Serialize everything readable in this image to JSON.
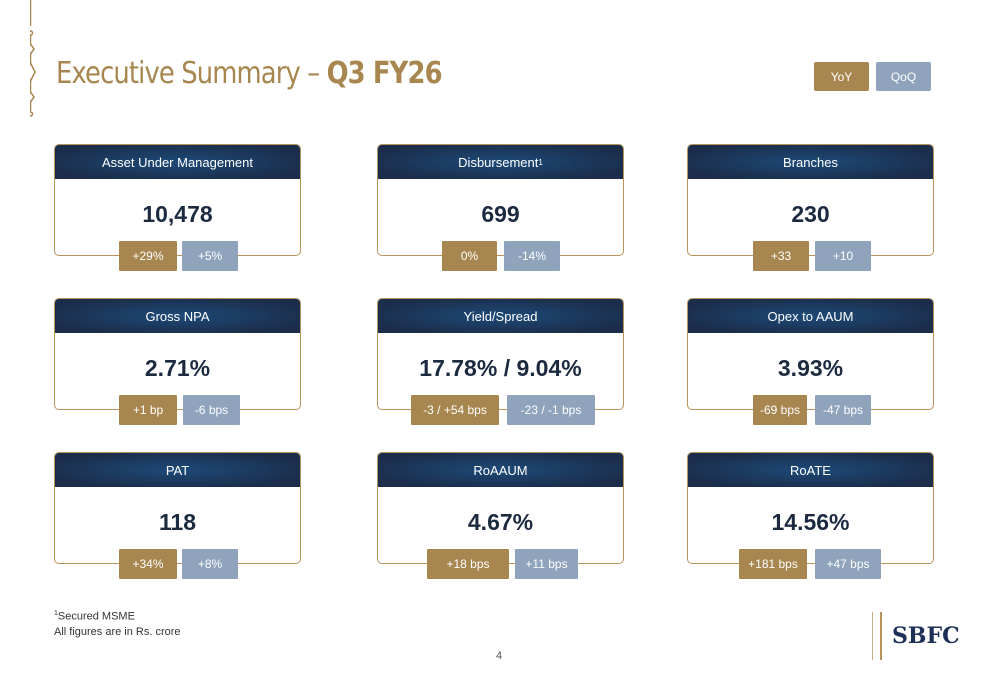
{
  "header": {
    "title_prefix": "Executive Summary – ",
    "title_bold": "Q3 FY26",
    "toggles": {
      "yoy": "YoY",
      "qoq": "QoQ"
    }
  },
  "cards": [
    {
      "title": "Asset Under Management",
      "value": "10,478",
      "yoy": "+29%",
      "qoq": "+5%"
    },
    {
      "title": "Disbursement",
      "sup": "1",
      "value": "699",
      "yoy": "0%",
      "qoq": "-14%"
    },
    {
      "title": "Branches",
      "value": "230",
      "yoy": "+33",
      "qoq": "+10"
    },
    {
      "title": "Gross NPA",
      "value": "2.71%",
      "yoy": "+1 bp",
      "qoq": "-6 bps"
    },
    {
      "title": "Yield/Spread",
      "value": "17.78% / 9.04%",
      "yoy": "-3 / +54 bps",
      "qoq": "-23 / -1 bps"
    },
    {
      "title": "Opex to AAUM",
      "value": "3.93%",
      "yoy": "-69 bps",
      "qoq": "-47 bps"
    },
    {
      "title": "PAT",
      "value": "118",
      "yoy": "+34%",
      "qoq": "+8%"
    },
    {
      "title": "RoAAUM",
      "value": "4.67%",
      "yoy": "+18 bps",
      "qoq": "+11 bps"
    },
    {
      "title": "RoATE",
      "value": "14.56%",
      "yoy": "+181 bps",
      "qoq": "+47 bps"
    }
  ],
  "footer": {
    "note_sup": "1",
    "note": "Secured MSME",
    "units": "All figures are in Rs. crore"
  },
  "page_number": "4",
  "logo": "SBFC",
  "colors": {
    "gold": "#a8864f",
    "blue_badge": "#8fa3bd",
    "navy": "#1b2d4a"
  }
}
